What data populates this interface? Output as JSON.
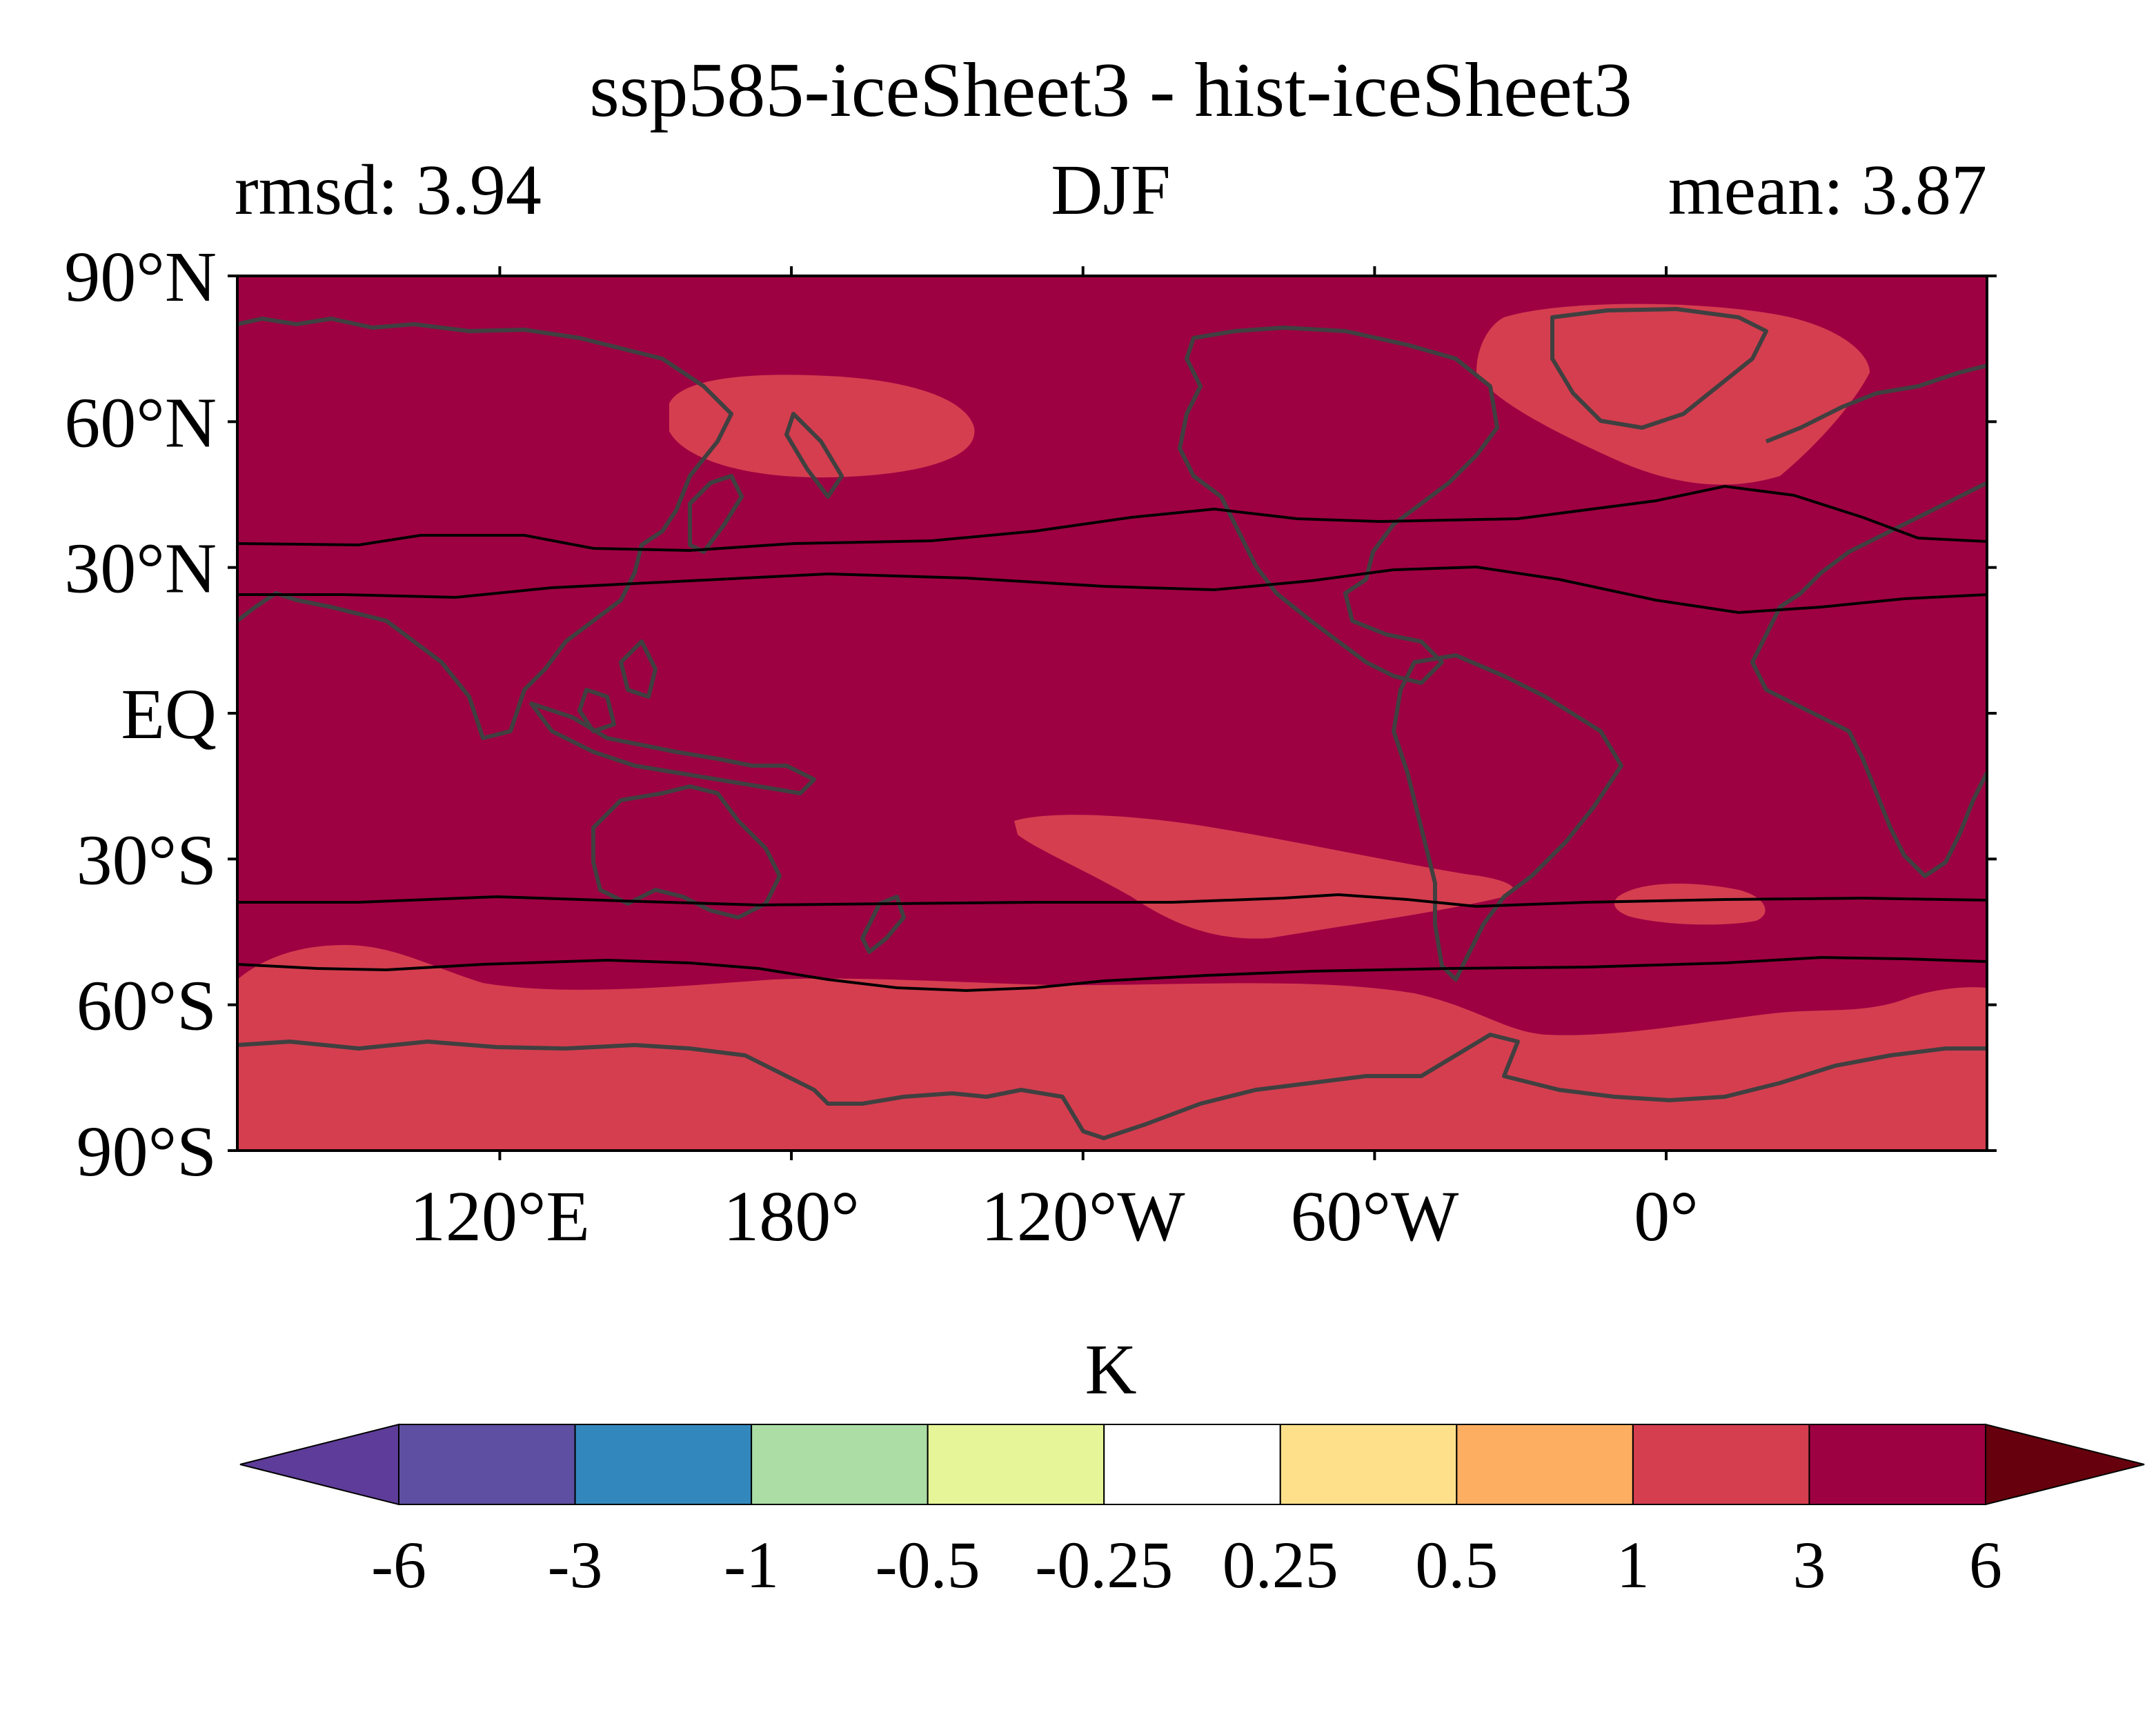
{
  "title": "ssp585-iceSheet3 - hist-iceSheet3",
  "stats": {
    "left": "rmsd: 3.94",
    "center": "DJF",
    "right": "mean: 3.87"
  },
  "map": {
    "projection": "equirectangular",
    "lon_range": [
      66,
      426
    ],
    "lat_range": [
      -90,
      90
    ],
    "background_fill": "#9e0142",
    "anomaly_regions": [
      {
        "name": "north-pacific-warm-patch",
        "level": "1 to 3",
        "color": "#d53e4f"
      },
      {
        "name": "north-atlantic-greenland-warm-patch",
        "level": "1 to 3",
        "color": "#d53e4f"
      },
      {
        "name": "south-pacific-warm-patch",
        "level": "1 to 3",
        "color": "#d53e4f"
      },
      {
        "name": "south-atlantic-warm-patch",
        "level": "1 to 3",
        "color": "#d53e4f"
      },
      {
        "name": "southern-ocean-antarctic-warm-band",
        "level": "1 to 3",
        "color": "#d53e4f"
      }
    ],
    "coastline_color": "#404040",
    "contour_line_color": "#000000"
  },
  "axes": {
    "y_ticks": [
      "90°N",
      "60°N",
      "30°N",
      "EQ",
      "30°S",
      "60°S",
      "90°S"
    ],
    "y_tick_values": [
      90,
      60,
      30,
      0,
      -30,
      -60,
      -90
    ],
    "x_ticks": [
      "120°E",
      "180°",
      "120°W",
      "60°W",
      "0°"
    ],
    "x_tick_values": [
      120,
      180,
      240,
      300,
      360
    ]
  },
  "colorbar": {
    "label": "K",
    "boundaries": [
      "-6",
      "-3",
      "-1",
      "-0.5",
      "-0.25",
      "0.25",
      "0.5",
      "1",
      "3",
      "6"
    ],
    "under_color": "#5e3c99",
    "over_color": "#67000d",
    "colors": [
      "#5e4fa2",
      "#3288bd",
      "#abdda4",
      "#e6f598",
      "#ffffff",
      "#fee08b",
      "#fdae61",
      "#d53e4f",
      "#9e0142"
    ]
  }
}
